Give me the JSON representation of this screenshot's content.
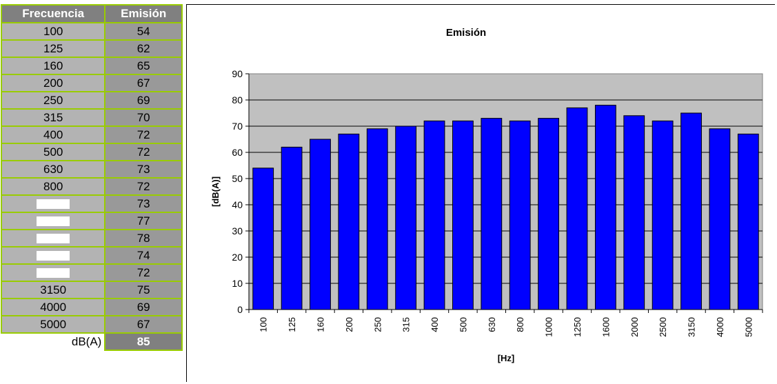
{
  "table": {
    "headers": [
      "Frecuencia",
      "Emisión"
    ],
    "rows": [
      [
        "100",
        "54"
      ],
      [
        "125",
        "62"
      ],
      [
        "160",
        "65"
      ],
      [
        "200",
        "67"
      ],
      [
        "250",
        "69"
      ],
      [
        "315",
        "70"
      ],
      [
        "400",
        "72"
      ],
      [
        "500",
        "72"
      ],
      [
        "630",
        "73"
      ],
      [
        "800",
        "72"
      ],
      [
        "",
        "73"
      ],
      [
        "",
        "77"
      ],
      [
        "",
        "78"
      ],
      [
        "",
        "74"
      ],
      [
        "",
        "72"
      ],
      [
        "3150",
        "75"
      ],
      [
        "4000",
        "69"
      ],
      [
        "5000",
        "67"
      ]
    ],
    "total_label": "dB(A)",
    "total_value": "85"
  },
  "chart_data": {
    "type": "bar",
    "title": "Emisión",
    "xlabel": "[Hz]",
    "ylabel": "[dB(A)]",
    "categories": [
      "100",
      "125",
      "160",
      "200",
      "250",
      "315",
      "400",
      "500",
      "630",
      "800",
      "1000",
      "1250",
      "1600",
      "2000",
      "2500",
      "3150",
      "4000",
      "5000"
    ],
    "values": [
      54,
      62,
      65,
      67,
      69,
      70,
      72,
      72,
      73,
      72,
      73,
      77,
      78,
      74,
      72,
      75,
      69,
      67
    ],
    "ylim": [
      0,
      90
    ],
    "yticks": [
      0,
      10,
      20,
      30,
      40,
      50,
      60,
      70,
      80,
      90
    ],
    "grid": true,
    "bar_color": "#0000ff",
    "plot_background": "#c0c0c0"
  }
}
